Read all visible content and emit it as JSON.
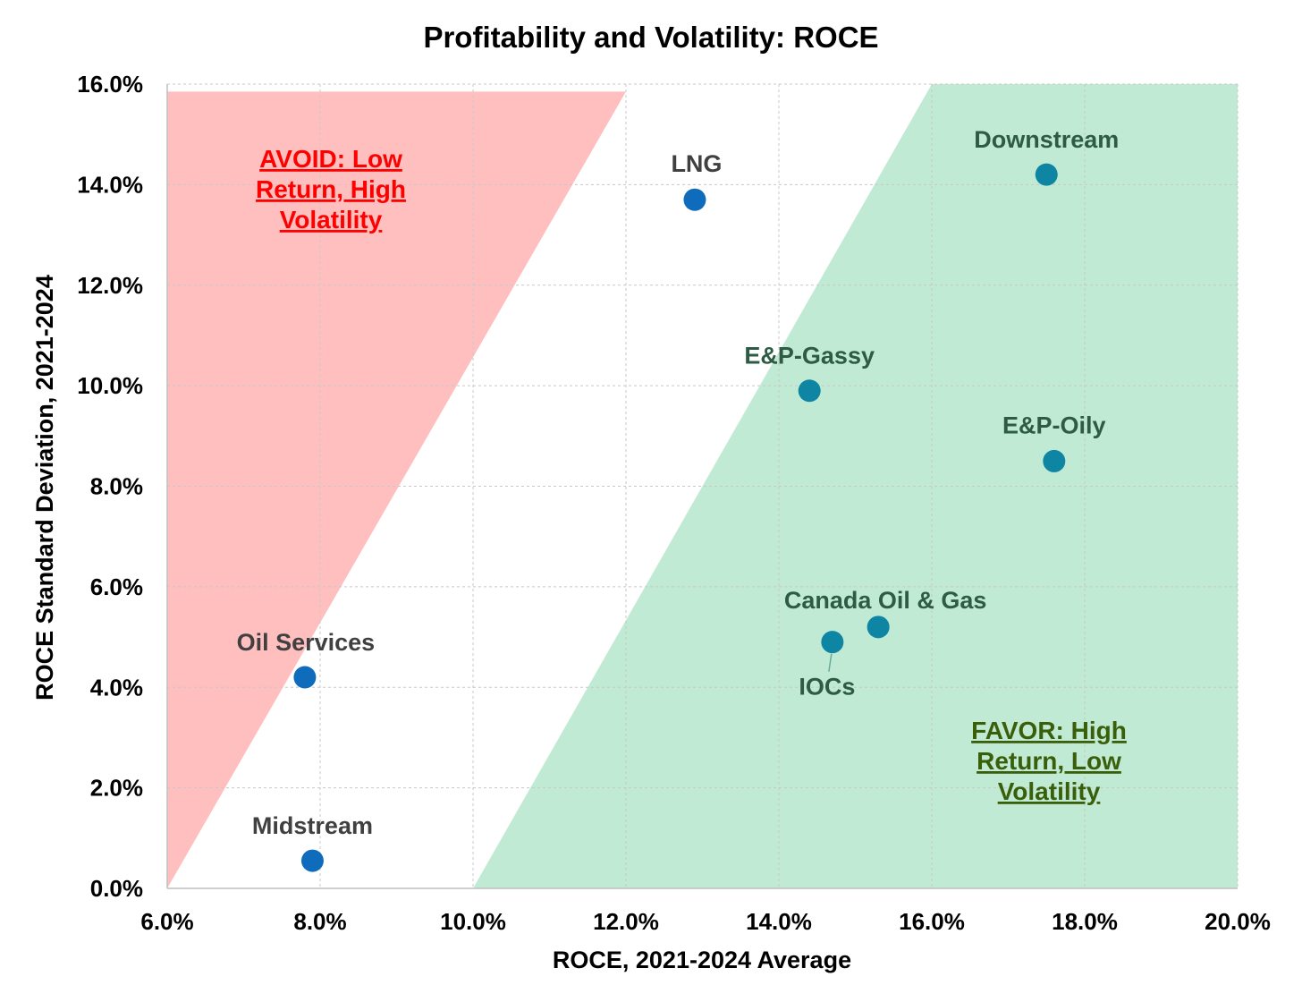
{
  "chart_data": {
    "type": "scatter",
    "title": "Profitability and Volatility: ROCE",
    "xlabel": "ROCE, 2021-2024 Average",
    "ylabel": "ROCE Standard Deviation, 2021-2024",
    "xlim": [
      0.06,
      0.2
    ],
    "ylim": [
      0.0,
      0.16
    ],
    "x_ticks": [
      "6.0%",
      "8.0%",
      "10.0%",
      "12.0%",
      "14.0%",
      "16.0%",
      "18.0%",
      "20.0%"
    ],
    "y_ticks": [
      "0.0%",
      "2.0%",
      "4.0%",
      "6.0%",
      "8.0%",
      "10.0%",
      "12.0%",
      "14.0%",
      "16.0%"
    ],
    "grid": true,
    "points": [
      {
        "label": "LNG",
        "x": 0.129,
        "y": 0.137,
        "color": "#0f6cbd"
      },
      {
        "label": "Oil Services",
        "x": 0.078,
        "y": 0.042,
        "color": "#0f6cbd"
      },
      {
        "label": "Midstream",
        "x": 0.079,
        "y": 0.0055,
        "color": "#0f6cbd"
      },
      {
        "label": "Downstream",
        "x": 0.175,
        "y": 0.142,
        "color": "#0e85a3"
      },
      {
        "label": "E&P-Gassy",
        "x": 0.144,
        "y": 0.099,
        "color": "#0e85a3"
      },
      {
        "label": "E&P-Oily",
        "x": 0.176,
        "y": 0.085,
        "color": "#0e85a3"
      },
      {
        "label": "Canada Oil & Gas",
        "x": 0.153,
        "y": 0.052,
        "color": "#0e85a3"
      },
      {
        "label": "IOCs",
        "x": 0.147,
        "y": 0.049,
        "color": "#0e85a3"
      }
    ],
    "zones": [
      {
        "name": "avoid",
        "lines": [
          "AVOID: Low",
          "Return, High",
          "Volatility"
        ],
        "color": "#ff0000",
        "fill": "#ffbfbf"
      },
      {
        "name": "favor",
        "lines": [
          "FAVOR: High",
          "Return, Low",
          "Volatility"
        ],
        "color": "#3a5f0b",
        "fill": "#c0ead4"
      }
    ]
  }
}
